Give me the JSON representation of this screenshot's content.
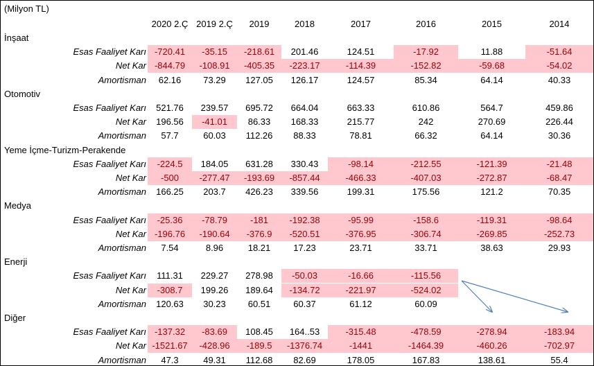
{
  "unit_label": "(Milyon TL)",
  "columns": [
    "2020 2.Ç",
    "2019 2.Ç",
    "2019",
    "2018",
    "2017",
    "2016",
    "2015",
    "2014"
  ],
  "colors": {
    "negative_fill": "#ffc7ce",
    "negative_text": "#9c0006",
    "arrow": "#4f81bd"
  },
  "sections": [
    {
      "title": "İnşaat",
      "rows": [
        {
          "label": "Esas Faaliyet Karı",
          "values": [
            "-720.41",
            "-35.15",
            "-218.61",
            "201.46",
            "124.51",
            "-17.92",
            "11.88",
            "-51.64"
          ]
        },
        {
          "label": "Net Kar",
          "values": [
            "-844.79",
            "-108.91",
            "-405.35",
            "-223.17",
            "-114.39",
            "-152.82",
            "-59.68",
            "-54.02"
          ]
        },
        {
          "label": "Amortisman",
          "values": [
            "62.16",
            "73.29",
            "127.05",
            "126.17",
            "124.57",
            "85.34",
            "64.14",
            "40.33"
          ]
        }
      ]
    },
    {
      "title": "Otomotiv",
      "rows": [
        {
          "label": "Esas Faaliyet Karı",
          "values": [
            "521.76",
            "239.57",
            "695.72",
            "664.04",
            "663.33",
            "610.86",
            "564.7",
            "459.86"
          ]
        },
        {
          "label": "Net Kar",
          "values": [
            "196.56",
            "-41.01",
            "86.33",
            "168.33",
            "215.77",
            "242",
            "270.69",
            "226.44"
          ]
        },
        {
          "label": "Amortisman",
          "values": [
            "57.7",
            "60.03",
            "112.26",
            "88.33",
            "78.81",
            "66.32",
            "64.14",
            "30.36"
          ]
        }
      ]
    },
    {
      "title": "Yeme İçme-Turizm-Perakende",
      "rows": [
        {
          "label": "Esas Faaliyet Karı",
          "values": [
            "-224.5",
            "184.05",
            "631.28",
            "330.43",
            "-98.14",
            "-212.55",
            "-121.39",
            "-21.48"
          ]
        },
        {
          "label": "Net Kar",
          "values": [
            "-500",
            "-277.47",
            "-193.69",
            "-857.44",
            "-466.33",
            "-407.03",
            "-272.87",
            "-68.47"
          ]
        },
        {
          "label": "Amortisman",
          "values": [
            "166.25",
            "203.7",
            "426.23",
            "339.56",
            "199.31",
            "175.56",
            "121.2",
            "70.35"
          ]
        }
      ]
    },
    {
      "title": "Medya",
      "rows": [
        {
          "label": "Esas Faaliyet Karı",
          "values": [
            "-25.36",
            "-78.79",
            "-181",
            "-192.38",
            "-95.99",
            "-158.6",
            "-119.31",
            "-98.64"
          ]
        },
        {
          "label": "Net Kar",
          "values": [
            "-196.76",
            "-190.64",
            "-376.9",
            "-520.51",
            "-376.95",
            "-306.74",
            "-269.85",
            "-252.73"
          ]
        },
        {
          "label": "Amortisman",
          "values": [
            "7.54",
            "8.96",
            "18.21",
            "17.23",
            "23.71",
            "33.71",
            "38.63",
            "29.93"
          ]
        }
      ]
    },
    {
      "title": "Enerji",
      "rows": [
        {
          "label": "Esas Faaliyet Karı",
          "values": [
            "111.31",
            "229.27",
            "278.98",
            "-50.03",
            "-16.66",
            "-115.56",
            "",
            ""
          ]
        },
        {
          "label": "Net Kar",
          "values": [
            "-308.7",
            "199.26",
            "189.64",
            "-134.72",
            "-221.97",
            "-524.02",
            "",
            ""
          ]
        },
        {
          "label": "Amortisman",
          "values": [
            "120.63",
            "30.23",
            "60.51",
            "60.37",
            "61.12",
            "60.09",
            "",
            ""
          ]
        }
      ]
    },
    {
      "title": "Diğer",
      "rows": [
        {
          "label": "Esas Faaliyet Karı",
          "values": [
            "-137.32",
            "-83.69",
            "108.45",
            "164..53",
            "-315.48",
            "-478.59",
            "-278.94",
            "-183.94"
          ]
        },
        {
          "label": "Net Kar",
          "values": [
            "-1521.67",
            "-428.96",
            "-189.5",
            "-1376.74",
            "-1441",
            "-1464.39",
            "-460.26",
            "-702.97"
          ]
        },
        {
          "label": "Amortisman",
          "values": [
            "47.3",
            "49.31",
            "112.68",
            "82.69",
            "178.05",
            "167.83",
            "138.61",
            "55.4"
          ]
        }
      ]
    }
  ]
}
